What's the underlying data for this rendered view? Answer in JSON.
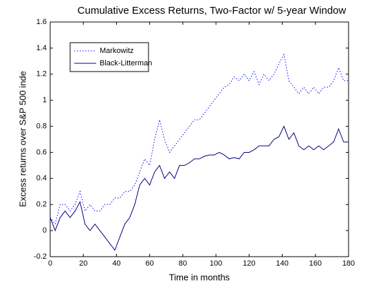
{
  "chart_data": {
    "type": "line",
    "title": "Cumulative Excess Returns, Two-Factor w/ 5-year Window",
    "xlabel": "Time in months",
    "ylabel": "Excess returns over S&P 500 inde",
    "x": [
      0,
      3,
      6,
      9,
      12,
      15,
      18,
      21,
      24,
      27,
      30,
      33,
      36,
      39,
      42,
      45,
      48,
      51,
      54,
      57,
      60,
      63,
      66,
      69,
      72,
      75,
      78,
      81,
      84,
      87,
      90,
      93,
      96,
      99,
      102,
      105,
      108,
      111,
      114,
      117,
      120,
      123,
      126,
      129,
      132,
      135,
      138,
      141,
      144,
      147,
      150,
      153,
      156,
      159,
      162,
      165,
      168,
      171,
      174,
      177,
      180
    ],
    "series": [
      {
        "name": "Markowitz",
        "color": "#0000ff",
        "linestyle": "dotted",
        "values": [
          0.1,
          0.05,
          0.2,
          0.2,
          0.15,
          0.2,
          0.3,
          0.15,
          0.2,
          0.15,
          0.15,
          0.2,
          0.2,
          0.25,
          0.25,
          0.3,
          0.3,
          0.35,
          0.45,
          0.55,
          0.5,
          0.7,
          0.85,
          0.7,
          0.6,
          0.65,
          0.7,
          0.75,
          0.8,
          0.85,
          0.85,
          0.9,
          0.95,
          1.0,
          1.05,
          1.1,
          1.12,
          1.18,
          1.15,
          1.2,
          1.15,
          1.22,
          1.12,
          1.2,
          1.15,
          1.2,
          1.28,
          1.35,
          1.15,
          1.1,
          1.05,
          1.1,
          1.05,
          1.1,
          1.05,
          1.1,
          1.1,
          1.15,
          1.25,
          1.15,
          1.15
        ]
      },
      {
        "name": "Black-Litterman",
        "color": "#000080",
        "linestyle": "solid",
        "values": [
          0.1,
          0.0,
          0.1,
          0.15,
          0.1,
          0.15,
          0.22,
          0.05,
          0.0,
          0.05,
          0.0,
          -0.05,
          -0.1,
          -0.15,
          -0.05,
          0.05,
          0.1,
          0.2,
          0.35,
          0.4,
          0.35,
          0.45,
          0.5,
          0.4,
          0.45,
          0.4,
          0.5,
          0.5,
          0.52,
          0.55,
          0.55,
          0.57,
          0.58,
          0.58,
          0.6,
          0.58,
          0.55,
          0.56,
          0.55,
          0.6,
          0.6,
          0.62,
          0.65,
          0.65,
          0.65,
          0.7,
          0.72,
          0.8,
          0.7,
          0.75,
          0.65,
          0.62,
          0.65,
          0.62,
          0.65,
          0.62,
          0.65,
          0.68,
          0.78,
          0.68,
          0.68
        ]
      }
    ],
    "xlim": [
      0,
      180
    ],
    "xticks": [
      0,
      20,
      40,
      60,
      80,
      100,
      120,
      140,
      160,
      180
    ],
    "ylim": [
      -0.2,
      1.6
    ],
    "yticks": [
      -0.2,
      0,
      0.2,
      0.4,
      0.6,
      0.8,
      1,
      1.2,
      1.4,
      1.6
    ],
    "legend": "upper left"
  }
}
